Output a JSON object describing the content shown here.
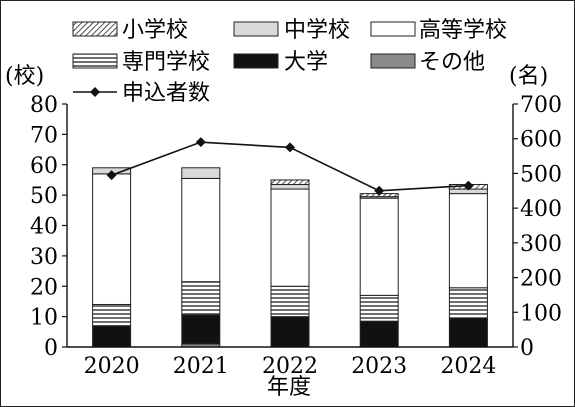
{
  "chart_data": {
    "type": "bar",
    "stacked": true,
    "categories": [
      "2020",
      "2021",
      "2022",
      "2023",
      "2024"
    ],
    "xlabel": "年度",
    "ylabel_left": "(校)",
    "ylabel_right": "(名)",
    "ylim_left": [
      0,
      80
    ],
    "ylim_right": [
      0,
      700
    ],
    "yticks_left": [
      "0",
      "10",
      "20",
      "30",
      "40",
      "50",
      "60",
      "70",
      "80"
    ],
    "yticks_right": [
      "0",
      "100",
      "200",
      "300",
      "400",
      "500",
      "600",
      "700"
    ],
    "legend_position": "top",
    "series": [
      {
        "name": "その他",
        "values": [
          0,
          1,
          0,
          0,
          0
        ],
        "pattern": "gray"
      },
      {
        "name": "大学",
        "values": [
          7,
          9.5,
          10,
          8.5,
          9.5
        ],
        "pattern": "black"
      },
      {
        "name": "専門学校",
        "values": [
          7,
          11,
          10,
          8.5,
          10
        ],
        "pattern": "hlines"
      },
      {
        "name": "高等学校",
        "values": [
          43,
          34,
          32,
          32,
          31
        ],
        "pattern": "white"
      },
      {
        "name": "中学校",
        "values": [
          2,
          3.5,
          1.5,
          0.5,
          1.5
        ],
        "pattern": "lightgray"
      },
      {
        "name": "小学校",
        "values": [
          0,
          0,
          1.5,
          1,
          1.5
        ],
        "pattern": "diag"
      }
    ],
    "line_series": {
      "name": "申込者数",
      "axis": "right",
      "values": [
        495,
        590,
        575,
        450,
        465
      ]
    },
    "colors": {
      "black": "#111111",
      "gray": "#8a8a8a",
      "lightgray": "#d9d9d9",
      "white": "#ffffff",
      "outline": "#222222"
    }
  }
}
